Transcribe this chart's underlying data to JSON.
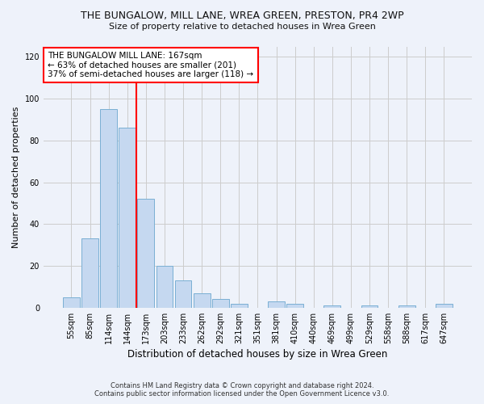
{
  "title": "THE BUNGALOW, MILL LANE, WREA GREEN, PRESTON, PR4 2WP",
  "subtitle": "Size of property relative to detached houses in Wrea Green",
  "xlabel": "Distribution of detached houses by size in Wrea Green",
  "ylabel": "Number of detached properties",
  "bar_labels": [
    "55sqm",
    "85sqm",
    "114sqm",
    "144sqm",
    "173sqm",
    "203sqm",
    "233sqm",
    "262sqm",
    "292sqm",
    "321sqm",
    "351sqm",
    "381sqm",
    "410sqm",
    "440sqm",
    "469sqm",
    "499sqm",
    "529sqm",
    "558sqm",
    "588sqm",
    "617sqm",
    "647sqm"
  ],
  "bar_values": [
    5,
    33,
    95,
    86,
    52,
    20,
    13,
    7,
    4,
    2,
    0,
    3,
    2,
    0,
    1,
    0,
    1,
    0,
    1,
    0,
    2
  ],
  "bar_color": "#c5d8f0",
  "bar_edge_color": "#7aafd4",
  "vline_color": "red",
  "annotation_text": "THE BUNGALOW MILL LANE: 167sqm\n← 63% of detached houses are smaller (201)\n37% of semi-detached houses are larger (118) →",
  "annotation_box_color": "white",
  "annotation_box_edge": "red",
  "ylim": [
    0,
    125
  ],
  "yticks": [
    0,
    20,
    40,
    60,
    80,
    100,
    120
  ],
  "grid_color": "#cccccc",
  "bg_color": "#eef2fa",
  "footer_line1": "Contains HM Land Registry data © Crown copyright and database right 2024.",
  "footer_line2": "Contains public sector information licensed under the Open Government Licence v3.0."
}
